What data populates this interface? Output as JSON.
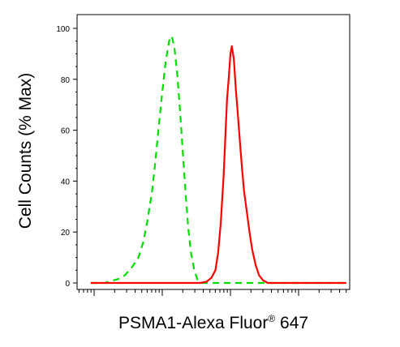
{
  "chart_data": {
    "type": "line",
    "title": "",
    "xlabel": {
      "main": "PSMA1-Alexa Fluor",
      "superscript": "®",
      "suffix": " 647"
    },
    "ylabel": "Cell Counts (% Max)",
    "x_scale": "log",
    "xlim": [
      -0.25,
      3.75
    ],
    "ylim": [
      0,
      100
    ],
    "y_ticks": [
      0,
      20,
      40,
      60,
      80,
      100
    ],
    "x_major_ticks": [
      0,
      1,
      2,
      3
    ],
    "grid": false,
    "legend": "none",
    "series": [
      {
        "color": "#00dd00",
        "style": "dashed",
        "points": [
          [
            -0.05,
            0
          ],
          [
            0.15,
            0
          ],
          [
            0.25,
            0.8
          ],
          [
            0.35,
            1.5
          ],
          [
            0.45,
            3
          ],
          [
            0.55,
            6
          ],
          [
            0.65,
            10
          ],
          [
            0.72,
            16
          ],
          [
            0.78,
            24
          ],
          [
            0.85,
            36
          ],
          [
            0.9,
            48
          ],
          [
            0.95,
            62
          ],
          [
            1.0,
            75
          ],
          [
            1.05,
            87
          ],
          [
            1.1,
            95
          ],
          [
            1.14,
            97
          ],
          [
            1.18,
            92
          ],
          [
            1.22,
            82
          ],
          [
            1.26,
            68
          ],
          [
            1.3,
            52
          ],
          [
            1.34,
            36
          ],
          [
            1.38,
            22
          ],
          [
            1.42,
            12
          ],
          [
            1.47,
            5
          ],
          [
            1.52,
            1
          ],
          [
            1.56,
            0
          ],
          [
            2.0,
            0
          ],
          [
            3.0,
            0
          ],
          [
            3.7,
            0
          ]
        ]
      },
      {
        "color": "#ff0000",
        "style": "solid",
        "points": [
          [
            -0.05,
            0
          ],
          [
            1.25,
            0
          ],
          [
            1.55,
            0
          ],
          [
            1.65,
            0.5
          ],
          [
            1.72,
            2
          ],
          [
            1.78,
            5
          ],
          [
            1.82,
            12
          ],
          [
            1.86,
            24
          ],
          [
            1.9,
            42
          ],
          [
            1.93,
            60
          ],
          [
            1.95,
            72
          ],
          [
            1.98,
            82
          ],
          [
            2.0,
            90
          ],
          [
            2.02,
            93
          ],
          [
            2.05,
            88
          ],
          [
            2.08,
            76
          ],
          [
            2.11,
            66
          ],
          [
            2.14,
            55
          ],
          [
            2.17,
            45
          ],
          [
            2.2,
            36
          ],
          [
            2.24,
            28
          ],
          [
            2.28,
            20
          ],
          [
            2.32,
            13
          ],
          [
            2.37,
            7
          ],
          [
            2.42,
            3
          ],
          [
            2.48,
            1
          ],
          [
            2.55,
            0
          ],
          [
            3.0,
            0
          ],
          [
            3.7,
            0
          ]
        ]
      }
    ]
  }
}
